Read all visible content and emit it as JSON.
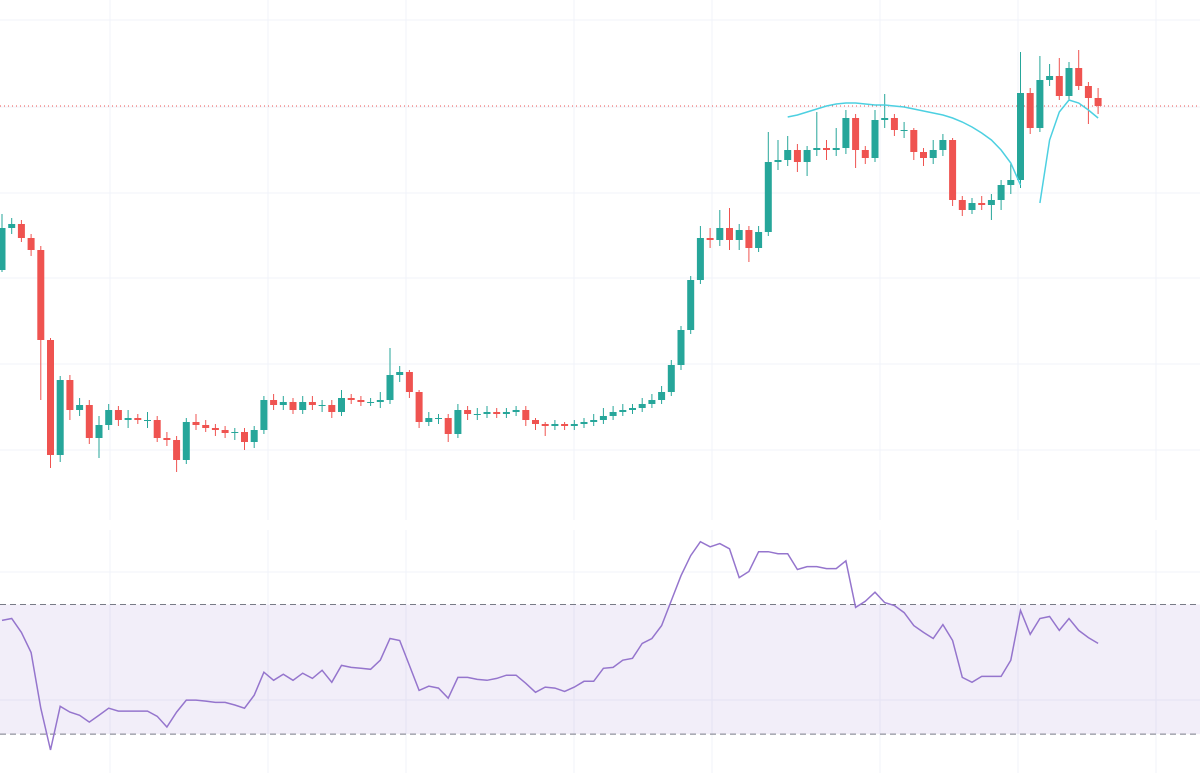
{
  "chart_data": [
    {
      "type": "candlestick",
      "ylim": [
        280,
        800
      ],
      "up_color": "#26a69a",
      "down_color": "#ef5350",
      "grid": true,
      "open": [
        530,
        572,
        576,
        562,
        550,
        460,
        345,
        420,
        390,
        395,
        362,
        375,
        390,
        380,
        382,
        380,
        380,
        362,
        360,
        340,
        378,
        375,
        372,
        370,
        367,
        368,
        358,
        370,
        400,
        395,
        398,
        390,
        398,
        395,
        395,
        388,
        402,
        400,
        398,
        398,
        400,
        425,
        428,
        408,
        378,
        382,
        382,
        366,
        390,
        386,
        386,
        388,
        386,
        388,
        390,
        380,
        376,
        374,
        376,
        374,
        376,
        378,
        380,
        384,
        388,
        390,
        392,
        396,
        400,
        408,
        435,
        470,
        520,
        562,
        560,
        572,
        560,
        570,
        552,
        568,
        638,
        640,
        650,
        638,
        650,
        652,
        650,
        652,
        682,
        650,
        642,
        680,
        682,
        670,
        670,
        648,
        642,
        650,
        660,
        600,
        590,
        597,
        595,
        600,
        615,
        620,
        707,
        672,
        720,
        724,
        704,
        732,
        714,
        702
      ],
      "high": [
        586,
        582,
        580,
        566,
        554,
        462,
        424,
        425,
        402,
        400,
        384,
        396,
        394,
        390,
        386,
        388,
        384,
        368,
        364,
        382,
        386,
        380,
        376,
        374,
        372,
        372,
        374,
        404,
        406,
        404,
        402,
        404,
        404,
        400,
        400,
        410,
        406,
        404,
        402,
        408,
        452,
        434,
        430,
        410,
        388,
        386,
        386,
        396,
        394,
        392,
        394,
        392,
        392,
        394,
        394,
        382,
        378,
        380,
        378,
        380,
        382,
        386,
        392,
        394,
        396,
        396,
        402,
        406,
        414,
        440,
        474,
        524,
        574,
        572,
        590,
        592,
        576,
        574,
        574,
        668,
        660,
        664,
        656,
        654,
        688,
        660,
        672,
        690,
        686,
        654,
        690,
        706,
        686,
        678,
        672,
        652,
        660,
        666,
        662,
        604,
        602,
        604,
        606,
        620,
        636,
        748,
        712,
        744,
        736,
        742,
        738,
        750,
        718,
        712
      ],
      "low": [
        528,
        566,
        558,
        544,
        400,
        332,
        338,
        380,
        384,
        356,
        342,
        370,
        374,
        372,
        376,
        372,
        358,
        354,
        328,
        336,
        370,
        368,
        364,
        362,
        360,
        350,
        352,
        366,
        390,
        390,
        386,
        386,
        390,
        388,
        382,
        384,
        396,
        394,
        394,
        392,
        396,
        418,
        402,
        372,
        374,
        376,
        358,
        362,
        380,
        380,
        382,
        382,
        382,
        384,
        374,
        370,
        364,
        370,
        370,
        370,
        372,
        374,
        376,
        380,
        384,
        386,
        388,
        392,
        396,
        404,
        430,
        466,
        516,
        552,
        554,
        550,
        550,
        538,
        548,
        564,
        630,
        634,
        628,
        624,
        644,
        640,
        644,
        646,
        632,
        636,
        638,
        672,
        664,
        662,
        640,
        634,
        636,
        644,
        594,
        584,
        586,
        590,
        580,
        590,
        606,
        612,
        666,
        668,
        714,
        700,
        700,
        710,
        676,
        686
      ],
      "close": [
        572,
        576,
        562,
        550,
        460,
        345,
        420,
        390,
        395,
        362,
        375,
        390,
        380,
        382,
        380,
        380,
        362,
        360,
        340,
        378,
        375,
        372,
        370,
        367,
        368,
        358,
        370,
        400,
        395,
        398,
        390,
        398,
        395,
        395,
        388,
        402,
        400,
        398,
        398,
        400,
        425,
        428,
        408,
        378,
        382,
        382,
        366,
        390,
        386,
        386,
        388,
        386,
        388,
        390,
        380,
        376,
        374,
        376,
        374,
        376,
        378,
        380,
        384,
        388,
        390,
        392,
        396,
        400,
        408,
        435,
        470,
        520,
        562,
        560,
        572,
        560,
        570,
        552,
        568,
        638,
        640,
        650,
        638,
        650,
        652,
        650,
        652,
        682,
        650,
        642,
        680,
        682,
        670,
        670,
        648,
        642,
        650,
        660,
        600,
        590,
        597,
        595,
        600,
        615,
        620,
        707,
        672,
        720,
        724,
        704,
        732,
        714,
        702,
        694
      ],
      "moving_average": {
        "color": "#4dd0e1",
        "values": [
          null,
          null,
          null,
          null,
          null,
          null,
          null,
          null,
          null,
          null,
          null,
          null,
          null,
          null,
          null,
          null,
          null,
          null,
          null,
          null,
          null,
          null,
          null,
          null,
          null,
          null,
          null,
          null,
          null,
          null,
          null,
          null,
          null,
          null,
          null,
          null,
          null,
          null,
          null,
          null,
          null,
          null,
          null,
          null,
          null,
          null,
          null,
          null,
          null,
          null,
          null,
          null,
          null,
          null,
          null,
          null,
          null,
          null,
          null,
          null,
          null,
          null,
          null,
          null,
          null,
          null,
          null,
          null,
          null,
          null,
          null,
          null,
          null,
          null,
          null,
          null,
          null,
          null,
          null,
          null,
          null,
          683,
          685,
          688,
          691,
          694,
          696,
          697,
          697,
          696,
          695,
          695,
          694,
          693,
          691,
          689,
          687,
          685,
          682,
          678,
          673,
          667,
          660,
          650,
          637,
          615,
          null,
          597,
          660,
          688,
          700,
          697,
          690,
          682
        ]
      },
      "last_price": {
        "value": 694,
        "color": "#ef5350"
      }
    },
    {
      "type": "line",
      "ylim": [
        18,
        93
      ],
      "color": "#9575cd",
      "levels": [
        30,
        70
      ],
      "band_color": "#9575cd",
      "grid": true,
      "values": [
        65.1,
        65.7,
        61.4,
        55.2,
        38.0,
        25.1,
        38.6,
        36.8,
        35.8,
        33.7,
        35.8,
        38.0,
        37.1,
        37.1,
        37.1,
        37.1,
        35.5,
        32.2,
        36.8,
        40.5,
        40.5,
        40.2,
        39.8,
        39.8,
        39.0,
        38.0,
        42.0,
        49.1,
        46.6,
        48.5,
        46.6,
        48.8,
        47.2,
        49.7,
        46.0,
        51.2,
        50.6,
        50.3,
        50.0,
        52.8,
        59.5,
        58.9,
        51.2,
        43.5,
        44.8,
        44.2,
        41.1,
        47.5,
        47.5,
        46.9,
        46.6,
        47.2,
        48.2,
        48.2,
        45.7,
        42.9,
        44.5,
        44.2,
        43.2,
        44.5,
        46.3,
        46.3,
        50.3,
        50.6,
        52.8,
        53.4,
        58.0,
        59.5,
        63.5,
        71.2,
        78.9,
        85.1,
        89.4,
        87.8,
        88.8,
        87.2,
        78.3,
        80.2,
        86.3,
        86.3,
        85.7,
        85.7,
        80.8,
        81.7,
        81.7,
        81.1,
        81.1,
        83.5,
        69.1,
        71.0,
        73.8,
        70.6,
        69.7,
        67.5,
        63.5,
        61.4,
        59.5,
        63.8,
        58.9,
        47.5,
        46.0,
        47.8,
        47.8,
        47.8,
        52.8,
        68.2,
        60.8,
        65.7,
        66.3,
        62.0,
        65.7,
        62.0,
        59.8,
        58.0
      ]
    }
  ]
}
